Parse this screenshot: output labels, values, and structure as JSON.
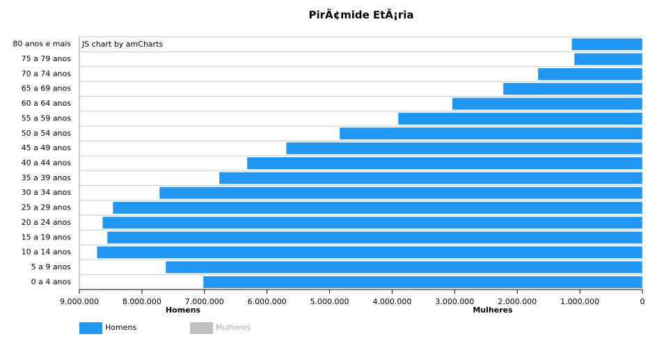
{
  "chart_data": {
    "type": "hbar",
    "title": "PirÃ¢mide EtÃ¡ria",
    "watermark": "JS chart by amCharts",
    "categories": [
      "80 anos e mais",
      "75 a 79 anos",
      "70 a 74 anos",
      "65 a 69 anos",
      "60 a 64 anos",
      "55 a 59 anos",
      "50 a 54 anos",
      "45 a 49 anos",
      "40 a 44 anos",
      "35 a 39 anos",
      "30 a 34 anos",
      "25 a 29 anos",
      "20 a 24 anos",
      "15 a 19 anos",
      "10 a 14 anos",
      "5 a 9 anos",
      "0 a 4 anos"
    ],
    "series": [
      {
        "name": "Homens",
        "color": "#2196f3",
        "values": [
          1130000,
          1090000,
          1670000,
          2225000,
          3040000,
          3905000,
          4840000,
          5695000,
          6320000,
          6765000,
          7720000,
          8465000,
          8630000,
          8555000,
          8720000,
          7620000,
          7020000
        ]
      }
    ],
    "hidden_series": [
      {
        "name": "Mulheres",
        "color": "#c0c0c0"
      }
    ],
    "axis_titles": [
      "Homens",
      "Mulheres"
    ],
    "xlim": [
      0,
      9000000
    ],
    "x_reversed": true,
    "xticks": [
      {
        "value": 9000000,
        "label": "9.000.000"
      },
      {
        "value": 8000000,
        "label": "8.000.000"
      },
      {
        "value": 7000000,
        "label": "7.000.000"
      },
      {
        "value": 6000000,
        "label": "6.000.000"
      },
      {
        "value": 5000000,
        "label": "5.000.000"
      },
      {
        "value": 4000000,
        "label": "4.000.000"
      },
      {
        "value": 3000000,
        "label": "3.000.000"
      },
      {
        "value": 2000000,
        "label": "2.000.000"
      },
      {
        "value": 1000000,
        "label": "1.000.000"
      },
      0
    ],
    "grid": true,
    "legend": "bottom-left"
  }
}
